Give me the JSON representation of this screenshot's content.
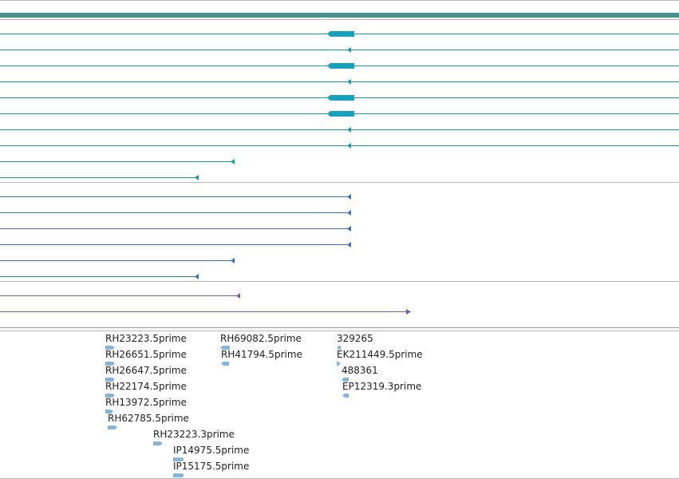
{
  "colors": {
    "background": "#ffffff",
    "panel_border": "#b8b8b8",
    "scale_bar": "#4a9090",
    "teal_track": "#1a9aa8",
    "teal_exon": "#17a1bd",
    "blue_track": "#3b6fc0",
    "purple_track": "#7a5aa8",
    "est_feature": "#87b5d8",
    "label_text": "#222222"
  },
  "tracks": {
    "teal_transcripts": [
      {
        "has_exon": true,
        "strand": "-",
        "end_kb": 440
      },
      {
        "has_exon": false,
        "strand": "-",
        "end_kb": 440
      },
      {
        "has_exon": true,
        "strand": "-",
        "end_kb": 440
      },
      {
        "has_exon": false,
        "strand": "-",
        "end_kb": 440
      },
      {
        "has_exon": true,
        "strand": "-",
        "end_kb": 440
      },
      {
        "has_exon": true,
        "strand": "-",
        "end_kb": 440
      },
      {
        "has_exon": false,
        "strand": "-",
        "end_kb": 440
      },
      {
        "has_exon": false,
        "strand": "-",
        "end_kb": 440
      },
      {
        "has_exon": false,
        "strand": "-",
        "end_kb": 294
      },
      {
        "has_exon": false,
        "strand": "-",
        "end_kb": 249
      }
    ],
    "blue_transcripts": [
      {
        "strand": "-",
        "end_kb": 440
      },
      {
        "strand": "-",
        "end_kb": 440
      },
      {
        "strand": "-",
        "end_kb": 440
      },
      {
        "strand": "-",
        "end_kb": 440
      },
      {
        "strand": "-",
        "end_kb": 294
      },
      {
        "strand": "-",
        "end_kb": 249
      }
    ],
    "purple_transcripts": [
      {
        "strand": "-",
        "end_kb": 301
      },
      {
        "strand": "+",
        "end_kb": 511
      }
    ]
  },
  "est_features": [
    {
      "label": "RH23223.5prime"
    },
    {
      "label": "RH26651.5prime"
    },
    {
      "label": "RH26647.5prime"
    },
    {
      "label": "RH22174.5prime"
    },
    {
      "label": "RH13972.5prime"
    },
    {
      "label": "RH62785.5prime"
    },
    {
      "label": "RH23223.3prime"
    },
    {
      "label": "IP14975.5prime"
    },
    {
      "label": "IP15175.5prime"
    },
    {
      "label": "RH69082.5prime"
    },
    {
      "label": "RH41794.5prime"
    },
    {
      "label": "329265"
    },
    {
      "label": "EK211449.5prime"
    },
    {
      "label": "488361"
    },
    {
      "label": "EP12319.3prime"
    }
  ]
}
